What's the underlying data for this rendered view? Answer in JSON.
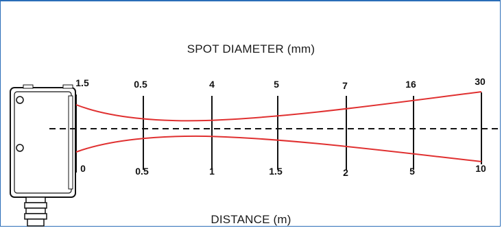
{
  "title": "SPOT DIAMETER (mm)",
  "footer": "DISTANCE (m)",
  "spot_labels": [
    "1.5",
    "0.5",
    "4",
    "5",
    "7",
    "16",
    "30"
  ],
  "distance_labels": [
    "0",
    "0.5",
    "1",
    "1.5",
    "2",
    "5",
    "10"
  ],
  "colors": {
    "beam": "#e03030",
    "frame": "#2a6db8",
    "axis": "#111111"
  }
}
